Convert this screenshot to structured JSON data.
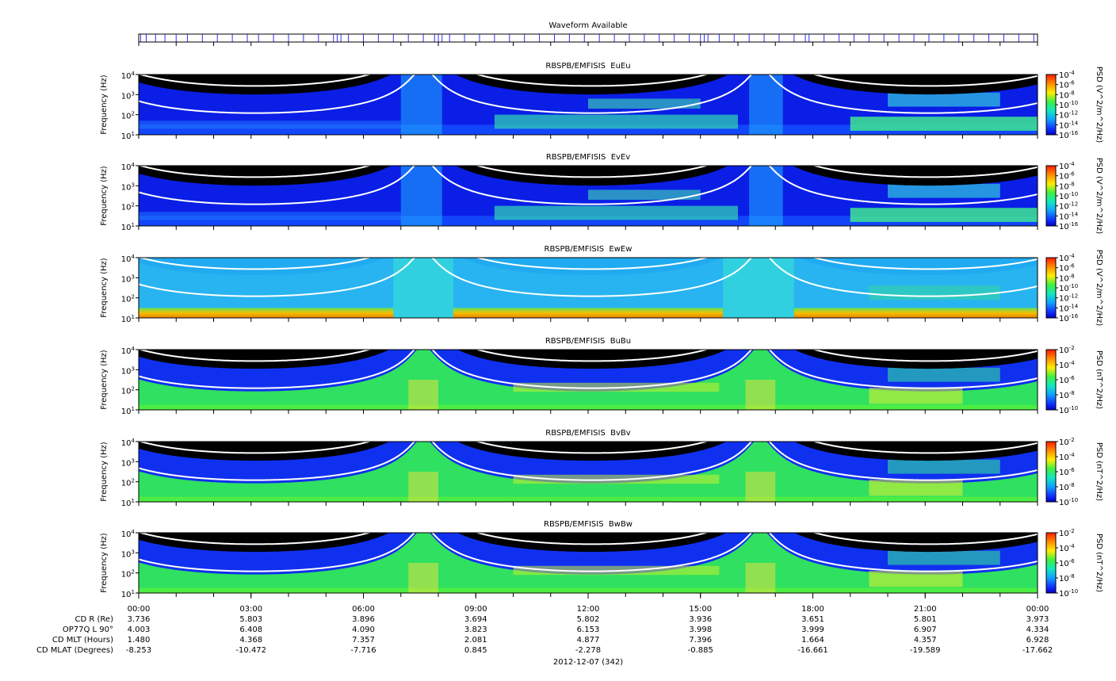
{
  "chart_data": {
    "type": "spectrogram",
    "waveform_title": "Waveform Available",
    "waveform_hours": [
      0.05,
      0.2,
      0.45,
      0.7,
      1.0,
      1.3,
      1.7,
      2.1,
      2.5,
      2.9,
      3.2,
      3.6,
      4.0,
      4.4,
      4.8,
      5.2,
      5.3,
      5.4,
      5.6,
      6.0,
      6.4,
      6.8,
      7.2,
      7.6,
      7.9,
      8.0,
      8.1,
      8.3,
      8.7,
      9.1,
      9.5,
      9.9,
      10.3,
      10.7,
      11.1,
      11.5,
      11.9,
      12.3,
      12.7,
      13.1,
      13.5,
      13.9,
      14.3,
      14.7,
      15.0,
      15.1,
      15.2,
      15.5,
      15.9,
      16.3,
      16.7,
      17.1,
      17.5,
      17.8,
      17.9,
      18.3,
      18.7,
      19.1,
      19.5,
      19.9,
      20.3,
      20.7,
      21.1,
      21.5,
      21.9,
      22.3,
      22.7,
      23.1,
      23.5,
      23.9
    ],
    "xlim": [
      0,
      24
    ],
    "xticks": [
      {
        "value": 0,
        "label": "00:00"
      },
      {
        "value": 3,
        "label": "03:00"
      },
      {
        "value": 6,
        "label": "06:00"
      },
      {
        "value": 9,
        "label": "09:00"
      },
      {
        "value": 12,
        "label": "12:00"
      },
      {
        "value": 15,
        "label": "15:00"
      },
      {
        "value": 18,
        "label": "18:00"
      },
      {
        "value": 21,
        "label": "21:00"
      },
      {
        "value": 24,
        "label": "00:00"
      }
    ],
    "minor_xticks": [
      0,
      1,
      2,
      3,
      4,
      5,
      6,
      7,
      8,
      9,
      10,
      11,
      12,
      13,
      14,
      15,
      16,
      17,
      18,
      19,
      20,
      21,
      22,
      23,
      24
    ],
    "panels": [
      {
        "title": "RBSPB/EMFISIS  EuEu",
        "ylabel": "Frequency (Hz)",
        "log": true,
        "ylim": [
          10,
          10000
        ],
        "yticks": [
          {
            "value": 10,
            "label": "10",
            "exp": "1"
          },
          {
            "value": 100,
            "label": "10",
            "exp": "2"
          },
          {
            "value": 1000,
            "label": "10",
            "exp": "3"
          },
          {
            "value": 10000,
            "label": "10",
            "exp": "4"
          }
        ],
        "colorbar": {
          "label": "PSD (V^2/m^2/Hz)",
          "lim": [
            1e-16,
            0.0001
          ],
          "ticks": [
            {
              "value": 0.0001,
              "label": "10",
              "exp": "-4"
            },
            {
              "value": 1e-06,
              "label": "10",
              "exp": "-6"
            },
            {
              "value": 1e-08,
              "label": "10",
              "exp": "-8"
            },
            {
              "value": 1e-10,
              "label": "10",
              "exp": "-10"
            },
            {
              "value": 1e-12,
              "label": "10",
              "exp": "-12"
            },
            {
              "value": 1e-14,
              "label": "10",
              "exp": "-14"
            },
            {
              "value": 1e-16,
              "label": "10",
              "exp": "-16"
            }
          ]
        }
      },
      {
        "title": "RBSPB/EMFISIS  EvEv",
        "ylabel": "Frequency (Hz)",
        "log": true,
        "ylim": [
          10,
          10000
        ],
        "yticks": [
          {
            "value": 10,
            "label": "10",
            "exp": "1"
          },
          {
            "value": 100,
            "label": "10",
            "exp": "2"
          },
          {
            "value": 1000,
            "label": "10",
            "exp": "3"
          },
          {
            "value": 10000,
            "label": "10",
            "exp": "4"
          }
        ],
        "colorbar": {
          "label": "PSD (V^2/m^2/Hz)",
          "lim": [
            1e-16,
            0.0001
          ],
          "ticks": [
            {
              "value": 0.0001,
              "label": "10",
              "exp": "-4"
            },
            {
              "value": 1e-06,
              "label": "10",
              "exp": "-6"
            },
            {
              "value": 1e-08,
              "label": "10",
              "exp": "-8"
            },
            {
              "value": 1e-10,
              "label": "10",
              "exp": "-10"
            },
            {
              "value": 1e-12,
              "label": "10",
              "exp": "-12"
            },
            {
              "value": 1e-14,
              "label": "10",
              "exp": "-14"
            },
            {
              "value": 1e-16,
              "label": "10",
              "exp": "-16"
            }
          ]
        }
      },
      {
        "title": "RBSPB/EMFISIS  EwEw",
        "ylabel": "Frequency (Hz)",
        "log": true,
        "ylim": [
          10,
          10000
        ],
        "yticks": [
          {
            "value": 10,
            "label": "10",
            "exp": "1"
          },
          {
            "value": 100,
            "label": "10",
            "exp": "2"
          },
          {
            "value": 1000,
            "label": "10",
            "exp": "3"
          },
          {
            "value": 10000,
            "label": "10",
            "exp": "4"
          }
        ],
        "colorbar": {
          "label": "PSD (V^2/m^2/Hz)",
          "lim": [
            1e-16,
            0.0001
          ],
          "ticks": [
            {
              "value": 0.0001,
              "label": "10",
              "exp": "-4"
            },
            {
              "value": 1e-06,
              "label": "10",
              "exp": "-6"
            },
            {
              "value": 1e-08,
              "label": "10",
              "exp": "-8"
            },
            {
              "value": 1e-10,
              "label": "10",
              "exp": "-10"
            },
            {
              "value": 1e-12,
              "label": "10",
              "exp": "-12"
            },
            {
              "value": 1e-14,
              "label": "10",
              "exp": "-14"
            },
            {
              "value": 1e-16,
              "label": "10",
              "exp": "-16"
            }
          ]
        }
      },
      {
        "title": "RBSPB/EMFISIS  BuBu",
        "ylabel": "Frequency (Hz)",
        "log": true,
        "ylim": [
          10,
          10000
        ],
        "yticks": [
          {
            "value": 10,
            "label": "10",
            "exp": "1"
          },
          {
            "value": 100,
            "label": "10",
            "exp": "2"
          },
          {
            "value": 1000,
            "label": "10",
            "exp": "3"
          },
          {
            "value": 10000,
            "label": "10",
            "exp": "4"
          }
        ],
        "colorbar": {
          "label": "PSD (nT^2/Hz)",
          "lim": [
            1e-10,
            0.01
          ],
          "ticks": [
            {
              "value": 0.01,
              "label": "10",
              "exp": "-2"
            },
            {
              "value": 0.0001,
              "label": "10",
              "exp": "-4"
            },
            {
              "value": 1e-06,
              "label": "10",
              "exp": "-6"
            },
            {
              "value": 1e-08,
              "label": "10",
              "exp": "-8"
            },
            {
              "value": 1e-10,
              "label": "10",
              "exp": "-10"
            }
          ]
        }
      },
      {
        "title": "RBSPB/EMFISIS  BvBv",
        "ylabel": "Frequency (Hz)",
        "log": true,
        "ylim": [
          10,
          10000
        ],
        "yticks": [
          {
            "value": 10,
            "label": "10",
            "exp": "1"
          },
          {
            "value": 100,
            "label": "10",
            "exp": "2"
          },
          {
            "value": 1000,
            "label": "10",
            "exp": "3"
          },
          {
            "value": 10000,
            "label": "10",
            "exp": "4"
          }
        ],
        "colorbar": {
          "label": "PSD (nT^2/Hz)",
          "lim": [
            1e-10,
            0.01
          ],
          "ticks": [
            {
              "value": 0.01,
              "label": "10",
              "exp": "-2"
            },
            {
              "value": 0.0001,
              "label": "10",
              "exp": "-4"
            },
            {
              "value": 1e-06,
              "label": "10",
              "exp": "-6"
            },
            {
              "value": 1e-08,
              "label": "10",
              "exp": "-8"
            },
            {
              "value": 1e-10,
              "label": "10",
              "exp": "-10"
            }
          ]
        }
      },
      {
        "title": "RBSPB/EMFISIS  BwBw",
        "ylabel": "Frequency (Hz)",
        "log": true,
        "ylim": [
          10,
          10000
        ],
        "yticks": [
          {
            "value": 10,
            "label": "10",
            "exp": "1"
          },
          {
            "value": 100,
            "label": "10",
            "exp": "2"
          },
          {
            "value": 1000,
            "label": "10",
            "exp": "3"
          },
          {
            "value": 10000,
            "label": "10",
            "exp": "4"
          }
        ],
        "colorbar": {
          "label": "PSD (nT^2/Hz)",
          "lim": [
            1e-10,
            0.01
          ],
          "ticks": [
            {
              "value": 0.01,
              "label": "10",
              "exp": "-2"
            },
            {
              "value": 0.0001,
              "label": "10",
              "exp": "-4"
            },
            {
              "value": 1e-06,
              "label": "10",
              "exp": "-6"
            },
            {
              "value": 1e-08,
              "label": "10",
              "exp": "-8"
            },
            {
              "value": 1e-10,
              "label": "10",
              "exp": "-10"
            }
          ]
        }
      }
    ],
    "ephemeris": {
      "rows": [
        {
          "label": "CD R (Re)",
          "values": [
            "3.736",
            "5.803",
            "3.896",
            "3.694",
            "5.802",
            "3.936",
            "3.651",
            "5.801",
            "3.973"
          ]
        },
        {
          "label": "OP77Q L 90°",
          "values": [
            "4.003",
            "6.408",
            "4.090",
            "3.823",
            "6.153",
            "3.998",
            "3.999",
            "6.907",
            "4.334"
          ]
        },
        {
          "label": "CD MLT (Hours)",
          "values": [
            "1.480",
            "4.368",
            "7.357",
            "2.081",
            "4.877",
            "7.396",
            "1.664",
            "4.357",
            "6.928"
          ]
        },
        {
          "label": "CD MLAT (Degrees)",
          "values": [
            "-8.253",
            "-10.472",
            "-7.716",
            "0.845",
            "-2.278",
            "-0.885",
            "-16.661",
            "-19.589",
            "-17.662"
          ]
        }
      ]
    },
    "date": "2012-12-07 (342)"
  }
}
